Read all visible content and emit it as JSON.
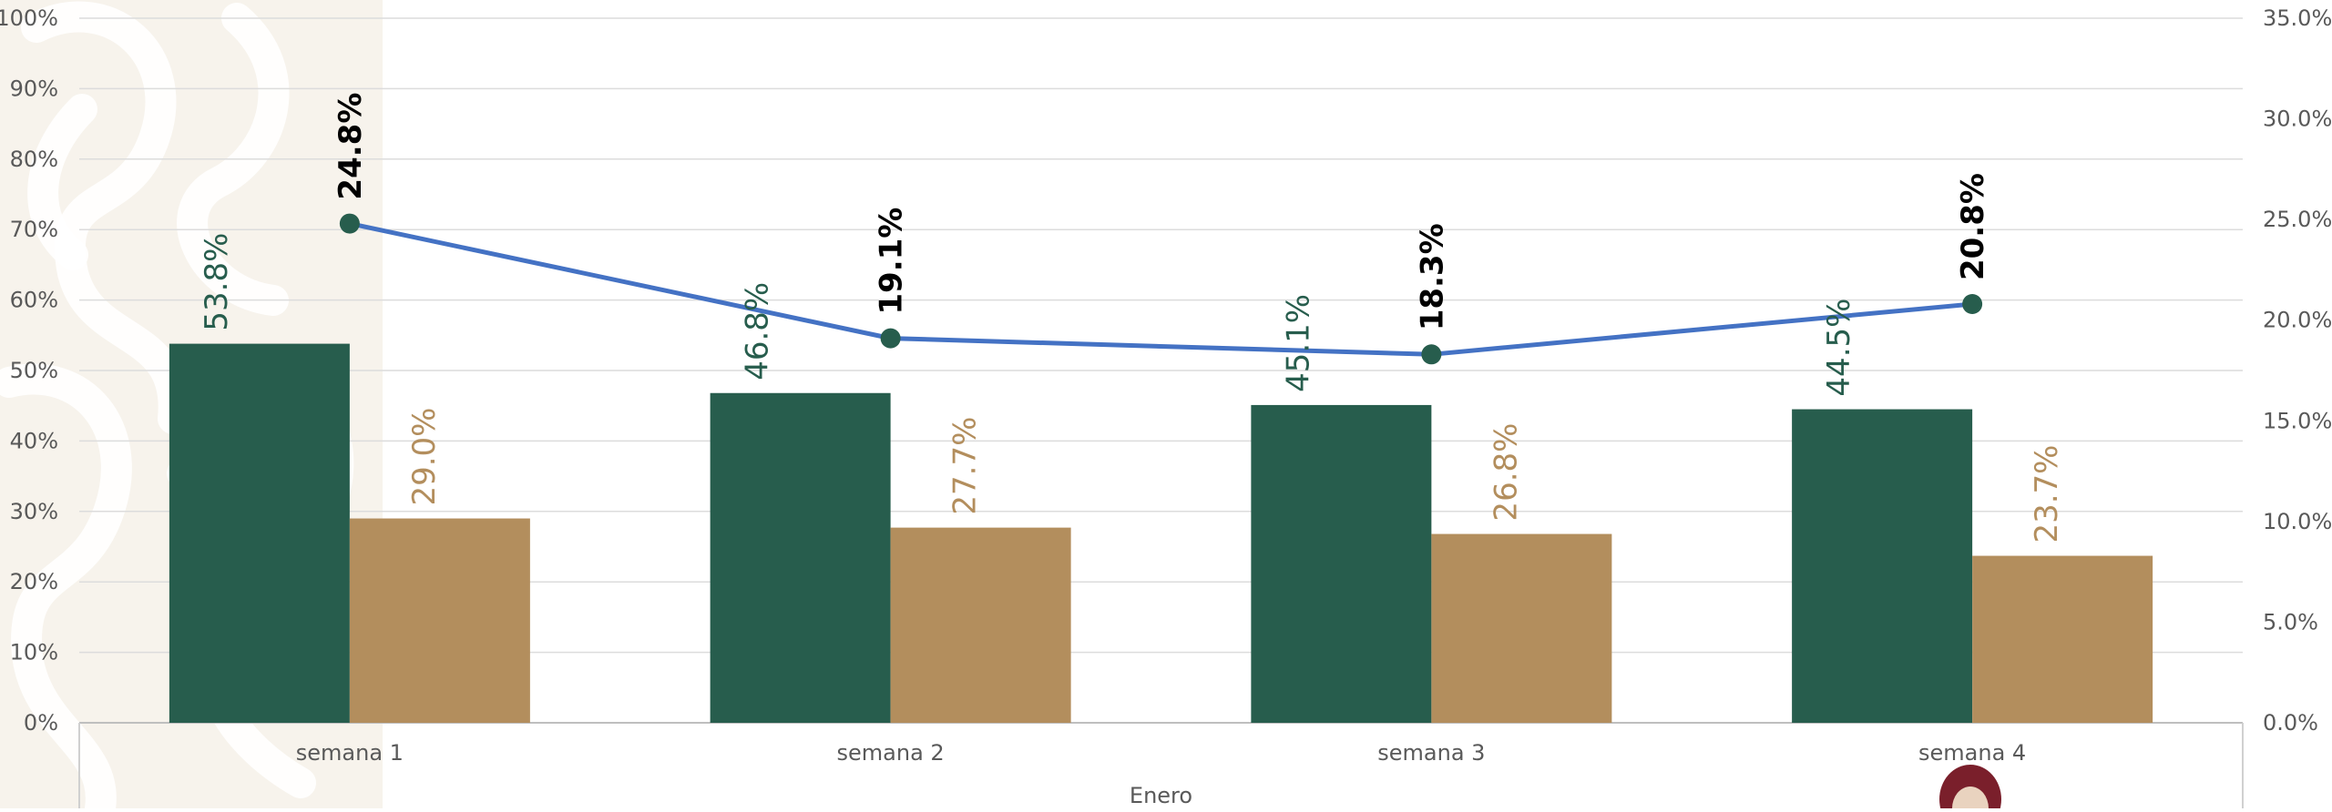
{
  "chart_data": {
    "type": "bar",
    "categories": [
      "semana  1",
      "semana 2",
      "semana 3",
      "semana  4"
    ],
    "group_label": "Enero",
    "series": [
      {
        "values": [
          53.8,
          46.8,
          45.1,
          44.5
        ],
        "axis": "left",
        "kind": "bar",
        "color": "#275D4D",
        "label_color": "#275D4D"
      },
      {
        "values": [
          29.0,
          27.7,
          26.8,
          23.7
        ],
        "axis": "left",
        "kind": "bar",
        "color": "#B38E5D",
        "label_color": "#B38E5D"
      },
      {
        "values": [
          24.8,
          19.1,
          18.3,
          20.8
        ],
        "axis": "right",
        "kind": "line",
        "color": "#4472C4",
        "marker_color": "#275D4D",
        "label_color": "#000000"
      }
    ],
    "y_left": {
      "range": [
        0,
        100
      ],
      "ticks": [
        "0%",
        "10%",
        "20%",
        "30%",
        "40%",
        "50%",
        "60%",
        "70%",
        "80%",
        "90%",
        "100%"
      ]
    },
    "y_right": {
      "range": [
        0,
        35
      ],
      "ticks": [
        "0.0%",
        "5.0%",
        "10.0%",
        "15.0%",
        "20.0%",
        "25.0%",
        "30.0%",
        "35.0%"
      ]
    },
    "data_labels": {
      "bar_1": [
        "53.8%",
        "46.8%",
        "45.1%",
        "44.5%"
      ],
      "bar_2": [
        "29.0%",
        "27.7%",
        "26.8%",
        "23.7%"
      ],
      "line": [
        "24.8%",
        "19.1%",
        "18.3%",
        "20.8%"
      ]
    },
    "grid": true,
    "legend": "none"
  }
}
